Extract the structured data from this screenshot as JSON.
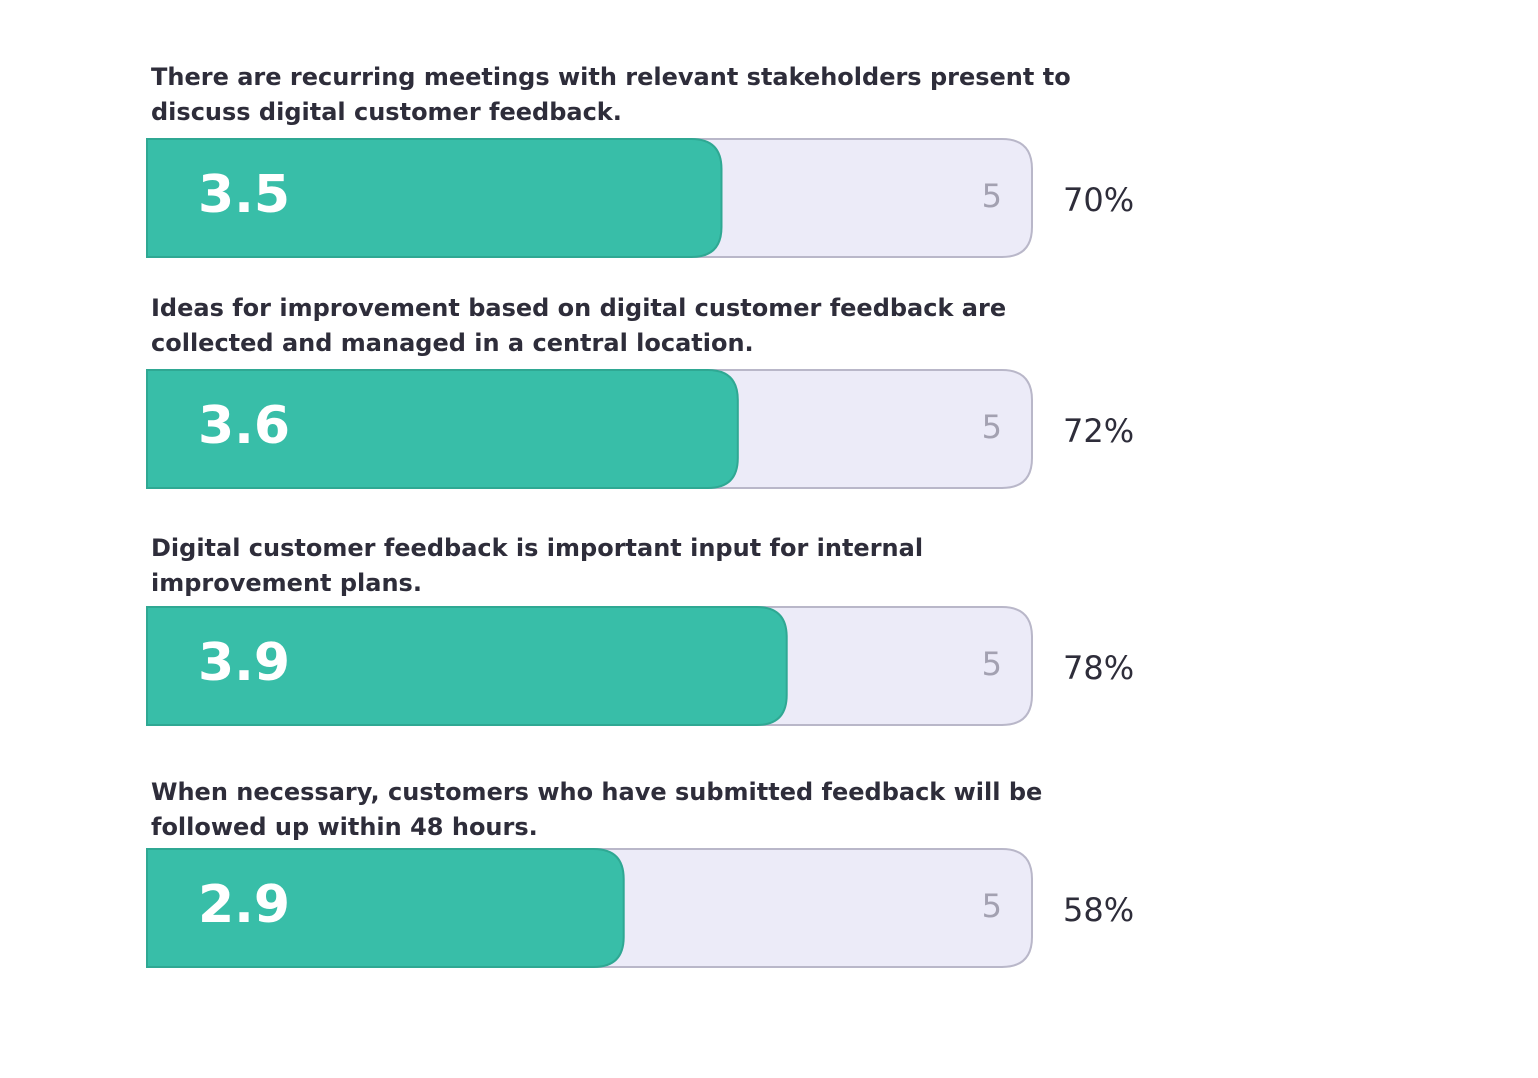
{
  "chart_data": {
    "type": "bar",
    "categories": [
      "There are recurring meetings with relevant stakeholders present to discuss digital customer feedback.",
      "Ideas for improvement based on digital customer feedback are collected and managed in a central location.",
      "Digital customer feedback is important input for internal improvement plans.",
      "When necessary, customers who have submitted feedback will be followed up within 48 hours."
    ],
    "values": [
      3.5,
      3.6,
      3.9,
      2.9
    ],
    "percent_labels": [
      "70%",
      "72%",
      "78%",
      "58%"
    ],
    "xlim": [
      0,
      5
    ],
    "color": "#38bea8",
    "track_color": "#ecebf8"
  }
}
